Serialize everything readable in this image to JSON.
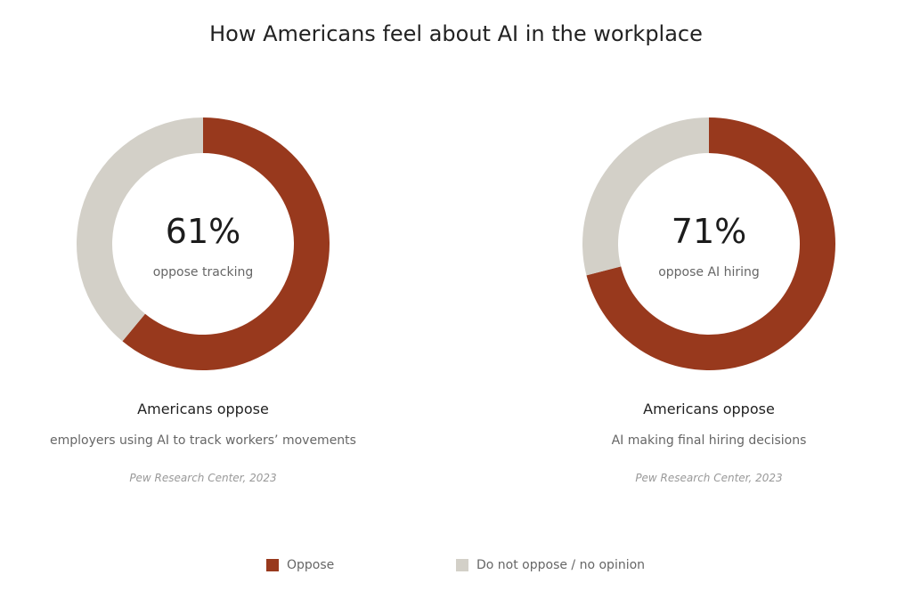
{
  "title": "How Americans feel about AI in the workplace",
  "colors": {
    "oppose": "#98391d",
    "other": "#d3d0c8"
  },
  "legend": [
    {
      "label": "Oppose",
      "color": "#98391d"
    },
    {
      "label": "Do not oppose / no opinion",
      "color": "#d3d0c8"
    }
  ],
  "panels": [
    {
      "pct_text": "61%",
      "center_label": "oppose tracking",
      "headline": "Americans oppose",
      "description": "employers using AI to track workers’ movements",
      "source": "Pew Research Center, 2023"
    },
    {
      "pct_text": "71%",
      "center_label": "oppose AI hiring",
      "headline": "Americans oppose",
      "description": "AI making final hiring decisions",
      "source": "Pew Research Center, 2023"
    }
  ],
  "chart_data": [
    {
      "type": "pie",
      "labels": [
        "Oppose",
        "Do not oppose / no opinion"
      ],
      "values": [
        61,
        39
      ]
    },
    {
      "type": "pie",
      "labels": [
        "Oppose",
        "Do not oppose / no opinion"
      ],
      "values": [
        71,
        29
      ]
    }
  ]
}
